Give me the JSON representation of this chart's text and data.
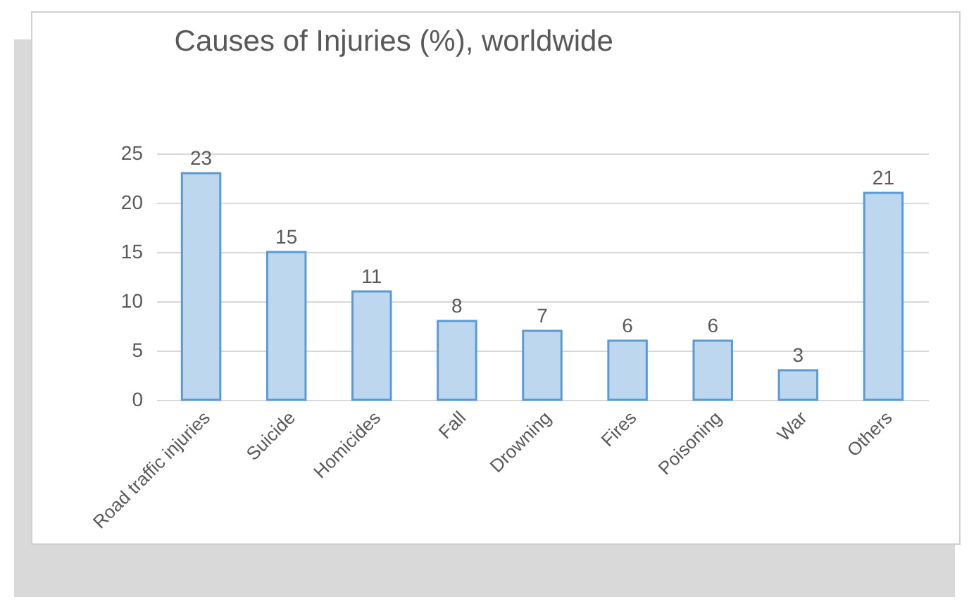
{
  "chart_data": {
    "type": "bar",
    "title": "Causes  of Injuries  (%), worldwide",
    "categories": [
      "Road traffic injuries",
      "Suicide",
      "Homicides",
      "Fall",
      "Drowning",
      "Fires",
      "Poisoning",
      "War",
      "Others"
    ],
    "values": [
      23,
      15,
      11,
      8,
      7,
      6,
      6,
      3,
      21
    ],
    "color": "#bdd7ee",
    "ylim": [
      0,
      25
    ],
    "yticks": [
      0,
      5,
      10,
      15,
      20,
      25
    ],
    "grid": "y",
    "data_labels": true
  }
}
